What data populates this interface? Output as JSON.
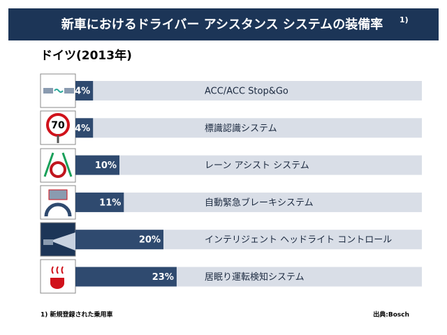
{
  "chart_data": {
    "type": "bar",
    "title": "新車におけるドライバー アシスタンス システムの装備率",
    "title_note": "1)",
    "subtitle": "ドイツ(2013年)",
    "categories": [
      "ACC/ACC Stop&Go",
      "標識認識システム",
      "レーン アシスト システム",
      "自動緊急ブレーキシステム",
      "インテリジェント ヘッドライト コントロール",
      "居眠り運転検知システム"
    ],
    "values": [
      4,
      4,
      10,
      11,
      20,
      23
    ],
    "value_labels": [
      "4%",
      "4%",
      "10%",
      "11%",
      "20%",
      "23%"
    ],
    "color": "#2f4a6f",
    "track_color": "#d9dee7",
    "sign_label": "70",
    "footnote": "1) 新規登録された乗用車",
    "source": "出典:Bosch"
  }
}
